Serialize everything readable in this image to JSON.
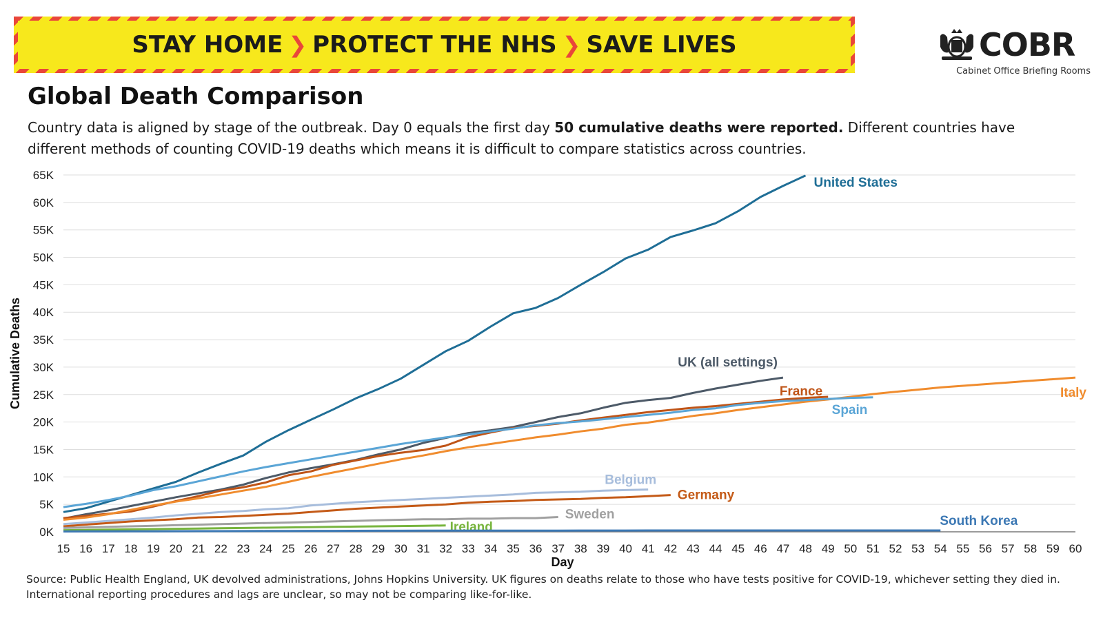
{
  "banner": {
    "part1": "STAY HOME",
    "part2": "PROTECT THE NHS",
    "part3": "SAVE LIVES",
    "separator": "❯",
    "colors": {
      "background": "#f7e81c",
      "stripe": "#e9463a"
    }
  },
  "logo": {
    "word": "COBR",
    "subtitle": "Cabinet Office Briefing Rooms",
    "icon": "royal-crest-icon"
  },
  "header": {
    "title": "Global Death Comparison",
    "desc_before": "Country data is aligned by stage of the outbreak. Day 0 equals the first day ",
    "desc_bold": "50 cumulative deaths were reported.",
    "desc_after": " Different countries have different methods of counting COVID-19 deaths which means it is difficult to compare statistics across countries."
  },
  "footer": {
    "source": "Source: Public Health England, UK devolved administrations, Johns Hopkins University. UK figures on deaths relate to those who have tests positive for COVID-19, whichever setting they died in. International reporting procedures and lags are unclear, so may not be comparing like-for-like."
  },
  "chart_data": {
    "type": "line",
    "xlabel": "Day",
    "ylabel": "Cumulative Deaths",
    "xlim": [
      15,
      60
    ],
    "ylim": [
      0,
      65000
    ],
    "xticks": [
      "15",
      "16",
      "17",
      "18",
      "19",
      "20",
      "21",
      "22",
      "23",
      "24",
      "25",
      "26",
      "27",
      "28",
      "29",
      "30",
      "31",
      "32",
      "33",
      "34",
      "35",
      "36",
      "37",
      "38",
      "39",
      "40",
      "41",
      "42",
      "43",
      "44",
      "45",
      "46",
      "47",
      "48",
      "49",
      "50",
      "51",
      "52",
      "53",
      "54",
      "55",
      "56",
      "57",
      "58",
      "59",
      "60"
    ],
    "yticks": [
      {
        "v": 0,
        "label": "0K"
      },
      {
        "v": 5000,
        "label": "5K"
      },
      {
        "v": 10000,
        "label": "10K"
      },
      {
        "v": 15000,
        "label": "15K"
      },
      {
        "v": 20000,
        "label": "20K"
      },
      {
        "v": 25000,
        "label": "25K"
      },
      {
        "v": 30000,
        "label": "30K"
      },
      {
        "v": 35000,
        "label": "35K"
      },
      {
        "v": 40000,
        "label": "40K"
      },
      {
        "v": 45000,
        "label": "45K"
      },
      {
        "v": 50000,
        "label": "50K"
      },
      {
        "v": 55000,
        "label": "55K"
      },
      {
        "v": 60000,
        "label": "60K"
      },
      {
        "v": 65000,
        "label": "65K"
      }
    ],
    "grid": true,
    "legend": "direct-labels",
    "series": [
      {
        "name": "United States",
        "color": "#1f6e96",
        "x_start": 15,
        "values": [
          3600,
          4300,
          5500,
          6700,
          7900,
          9100,
          10800,
          12400,
          13900,
          16400,
          18500,
          20400,
          22300,
          24300,
          26000,
          27900,
          30400,
          32900,
          34800,
          37400,
          39800,
          40800,
          42600,
          45000,
          47300,
          49800,
          51400,
          53700,
          54900,
          56200,
          58400,
          61000,
          63000,
          64900
        ]
      },
      {
        "name": "UK (all settings)",
        "color": "#4d5a68",
        "x_start": 15,
        "values": [
          2400,
          3200,
          3900,
          4700,
          5500,
          6300,
          7000,
          7700,
          8600,
          9800,
          10800,
          11600,
          12300,
          13100,
          14100,
          15000,
          16200,
          17100,
          18000,
          18500,
          19100,
          20000,
          20900,
          21600,
          22600,
          23500,
          24000,
          24400,
          25300,
          26100,
          26800,
          27500,
          28100
        ]
      },
      {
        "name": "France",
        "color": "#bf5417",
        "x_start": 15,
        "values": [
          2500,
          2900,
          3300,
          3700,
          4600,
          5600,
          6500,
          7500,
          8100,
          9000,
          10300,
          11000,
          12200,
          13000,
          13800,
          14400,
          14900,
          15700,
          17200,
          18100,
          18900,
          19300,
          19700,
          20300,
          20800,
          21300,
          21800,
          22200,
          22600,
          22900,
          23300,
          23700,
          24100,
          24400,
          24600
        ]
      },
      {
        "name": "Italy",
        "color": "#f08c2e",
        "x_start": 15,
        "values": [
          2200,
          2600,
          3200,
          4000,
          4800,
          5500,
          6100,
          6800,
          7500,
          8200,
          9100,
          10000,
          10800,
          11600,
          12400,
          13200,
          13900,
          14700,
          15400,
          16000,
          16600,
          17200,
          17700,
          18300,
          18800,
          19500,
          19900,
          20500,
          21100,
          21600,
          22200,
          22700,
          23200,
          23700,
          24100,
          24600,
          25100,
          25500,
          25900,
          26300,
          26600,
          26900,
          27200,
          27500,
          27800,
          28100
        ]
      },
      {
        "name": "Spain",
        "color": "#5aa5d6",
        "x_start": 15,
        "values": [
          4500,
          5100,
          5800,
          6600,
          7600,
          8300,
          9200,
          10100,
          11000,
          11800,
          12500,
          13200,
          13900,
          14600,
          15300,
          16000,
          16600,
          17200,
          17700,
          18300,
          18800,
          19400,
          19800,
          20100,
          20500,
          20900,
          21300,
          21700,
          22200,
          22500,
          23100,
          23500,
          23800,
          24000,
          24200,
          24400,
          24500
        ]
      },
      {
        "name": "Belgium",
        "color": "#a7bddc",
        "x_start": 15,
        "values": [
          1400,
          1700,
          2000,
          2300,
          2600,
          3000,
          3300,
          3600,
          3800,
          4100,
          4300,
          4800,
          5100,
          5400,
          5600,
          5800,
          6000,
          6200,
          6400,
          6600,
          6800,
          7100,
          7200,
          7300,
          7500,
          7600,
          7700
        ]
      },
      {
        "name": "Germany",
        "color": "#c45a17",
        "x_start": 15,
        "values": [
          1000,
          1300,
          1600,
          1900,
          2100,
          2300,
          2600,
          2700,
          2900,
          3100,
          3300,
          3600,
          3900,
          4200,
          4400,
          4600,
          4800,
          5000,
          5300,
          5500,
          5600,
          5800,
          5900,
          6000,
          6200,
          6300,
          6500,
          6700
        ]
      },
      {
        "name": "Sweden",
        "color": "#a0a0a0",
        "x_start": 15,
        "values": [
          700,
          800,
          900,
          1000,
          1100,
          1200,
          1300,
          1400,
          1500,
          1600,
          1700,
          1800,
          1900,
          2000,
          2100,
          2200,
          2300,
          2300,
          2400,
          2400,
          2500,
          2500,
          2700
        ]
      },
      {
        "name": "Ireland",
        "color": "#78b53e",
        "x_start": 15,
        "values": [
          300,
          350,
          400,
          450,
          500,
          550,
          600,
          650,
          700,
          750,
          800,
          850,
          900,
          950,
          1000,
          1050,
          1100,
          1150
        ]
      },
      {
        "name": "South Korea",
        "color": "#3c78b4",
        "x_start": 15,
        "values": [
          60,
          70,
          80,
          90,
          100,
          110,
          120,
          130,
          140,
          150,
          160,
          170,
          180,
          190,
          200,
          200,
          210,
          210,
          220,
          220,
          230,
          230,
          230,
          240,
          240,
          240,
          250,
          250,
          250,
          250,
          250,
          250,
          250,
          250,
          250,
          255,
          255,
          256,
          256,
          256
        ]
      }
    ]
  }
}
